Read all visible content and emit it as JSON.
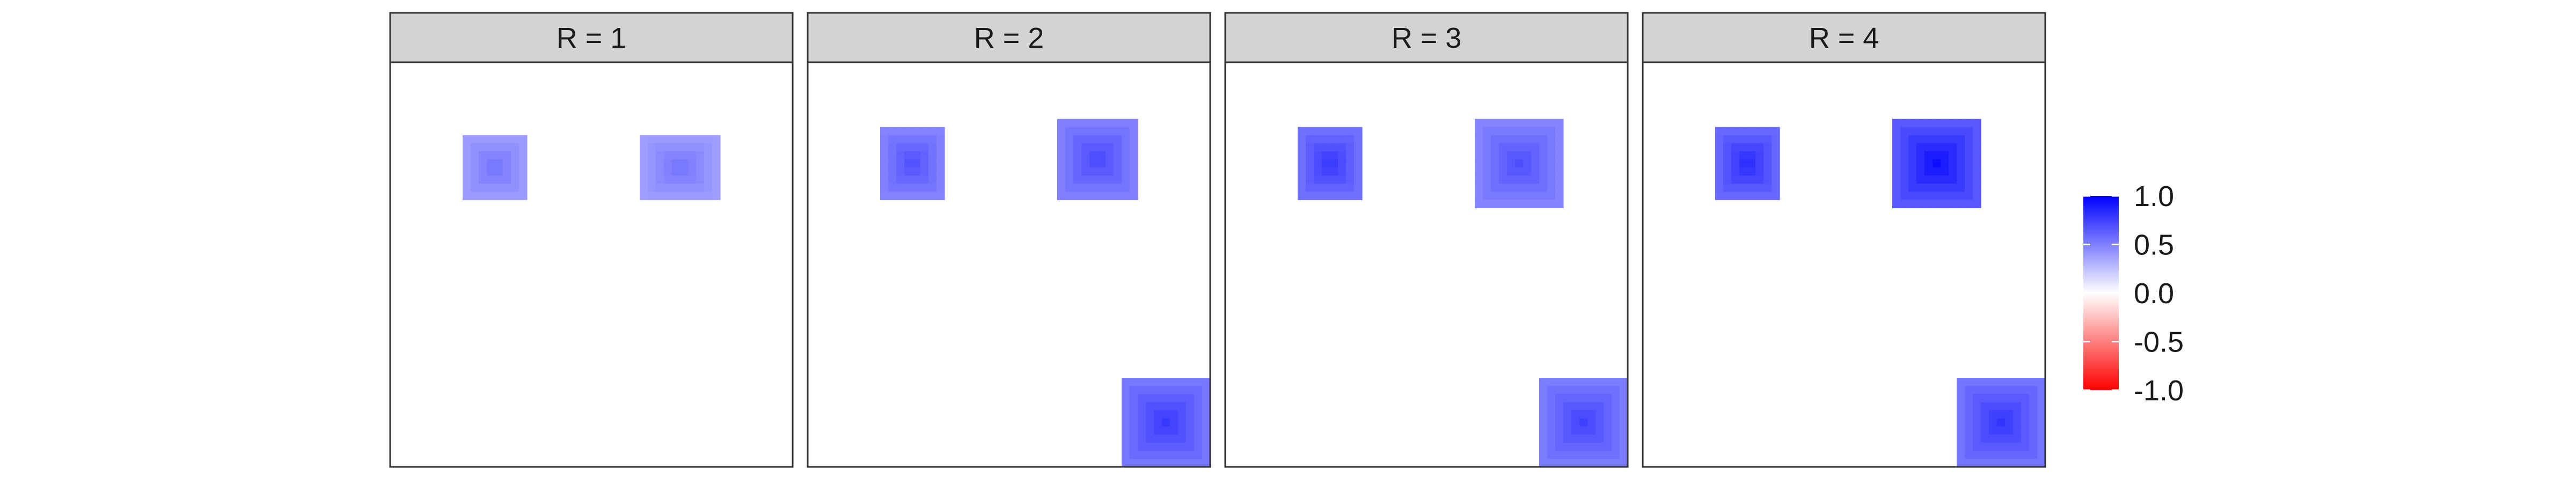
{
  "chart_data": {
    "type": "heatmap",
    "layout": "faceted-1x4",
    "facets": [
      {
        "label": "R = 1",
        "R": 1
      },
      {
        "label": "R = 2",
        "R": 2
      },
      {
        "label": "R = 3",
        "R": 3
      },
      {
        "label": "R = 4",
        "R": 4
      }
    ],
    "grid_size": 50,
    "color_scale": {
      "limits": [
        -1.0,
        1.0
      ],
      "low": "#FF0000",
      "mid": "#FFFFFF",
      "high": "#0000FF",
      "ticks": [
        1.0,
        0.5,
        0.0,
        -0.5,
        -1.0
      ],
      "tick_labels": [
        "1.0",
        "0.5",
        "0.0",
        "-0.5",
        "-1.0"
      ]
    },
    "legend_position": "right",
    "strip_fill": "#D3D3D3",
    "axes_shown": false,
    "blocks": [
      {
        "facet": 1,
        "rows": [
          10,
          17
        ],
        "cols": [
          10,
          17
        ],
        "peak": 0.55
      },
      {
        "facet": 1,
        "rows": [
          10,
          17
        ],
        "cols": [
          32,
          41
        ],
        "peak": 0.55
      },
      {
        "facet": 2,
        "rows": [
          9,
          17
        ],
        "cols": [
          10,
          17
        ],
        "peak": 0.7
      },
      {
        "facet": 2,
        "rows": [
          8,
          17
        ],
        "cols": [
          32,
          41
        ],
        "peak": 0.72
      },
      {
        "facet": 2,
        "rows": [
          40,
          50
        ],
        "cols": [
          40,
          50
        ],
        "peak": 0.78
      },
      {
        "facet": 3,
        "rows": [
          9,
          17
        ],
        "cols": [
          10,
          17
        ],
        "peak": 0.8
      },
      {
        "facet": 3,
        "rows": [
          8,
          18
        ],
        "cols": [
          32,
          42
        ],
        "peak": 0.7
      },
      {
        "facet": 3,
        "rows": [
          40,
          50
        ],
        "cols": [
          40,
          50
        ],
        "peak": 0.75
      },
      {
        "facet": 4,
        "rows": [
          9,
          17
        ],
        "cols": [
          10,
          17
        ],
        "peak": 0.85
      },
      {
        "facet": 4,
        "rows": [
          8,
          18
        ],
        "cols": [
          32,
          42
        ],
        "peak": 0.95
      },
      {
        "facet": 4,
        "rows": [
          40,
          50
        ],
        "cols": [
          40,
          50
        ],
        "peak": 0.8
      }
    ]
  }
}
